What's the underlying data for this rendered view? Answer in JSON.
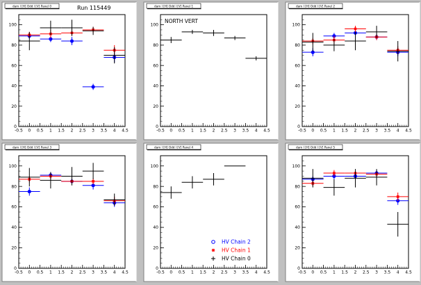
{
  "run_label": "Run 115449",
  "pad_titles": [
    "dam l [H] Odd l [V] Panel 0",
    "dam l [H] Odd l [V] Panel 1",
    "dam l [H] Odd l [V] Panel 2",
    "dam l [H] Odd l [V] Panel 3",
    "dam l [H] Odd l [V] Panel 4",
    "dam l [H] Odd l [V] Panel 5"
  ],
  "legend": {
    "entries": [
      {
        "label": "HV Chain 2",
        "color": "#0000ff",
        "marker": "open-circle"
      },
      {
        "label": "HV Chain 1",
        "color": "#ff0000",
        "marker": "star"
      },
      {
        "label": "HV Chain 0",
        "color": "#000000",
        "marker": "cross"
      }
    ]
  },
  "colors": {
    "chain2": "#0000ff",
    "chain1": "#ff0000",
    "chain0": "#000000",
    "pad_bg": "#ffffff",
    "canvas_bg": "#c0c0c0"
  },
  "chart_data": [
    {
      "type": "scatter",
      "title": "dam l [H] Odd l [V] Panel 0",
      "annotation": "Run 115449",
      "xlim": [
        -0.5,
        4.5
      ],
      "ylim": [
        0,
        110
      ],
      "x_ticks": [
        "-0.5",
        "0",
        "0.5",
        "1",
        "1.5",
        "2",
        "2.5",
        "3",
        "3.5",
        "4",
        "4.5"
      ],
      "y_ticks": [
        "0",
        "20",
        "40",
        "60",
        "80",
        "100"
      ],
      "series": [
        {
          "key": "chain2",
          "x": [
            0,
            1,
            2,
            3,
            4
          ],
          "y": [
            89,
            86,
            84,
            39,
            68
          ],
          "yerr": [
            3,
            3,
            4,
            3,
            5
          ]
        },
        {
          "key": "chain1",
          "x": [
            0,
            1,
            2,
            3,
            4
          ],
          "y": [
            90,
            91,
            92,
            95,
            75
          ],
          "yerr": [
            3,
            4,
            3,
            3,
            5
          ]
        },
        {
          "key": "chain0",
          "x": [
            0,
            1,
            2,
            3,
            4
          ],
          "y": [
            84,
            97,
            97,
            94,
            70
          ],
          "yerr": [
            9,
            7,
            8,
            4,
            8
          ]
        }
      ]
    },
    {
      "type": "scatter",
      "title": "dam l [H] Odd l [V] Panel 1",
      "annotation": "NORTH VERT",
      "xlim": [
        -0.5,
        4.5
      ],
      "ylim": [
        0,
        110
      ],
      "x_ticks": [
        "-0.5",
        "0",
        "0.5",
        "1",
        "1.5",
        "2",
        "2.5",
        "3",
        "3.5",
        "4",
        "4.5"
      ],
      "y_ticks": [
        "0",
        "20",
        "40",
        "60",
        "80",
        "100"
      ],
      "series": [
        {
          "key": "chain0",
          "x": [
            0,
            1,
            2,
            3,
            4
          ],
          "y": [
            85,
            93,
            92,
            87,
            67
          ],
          "yerr": [
            3,
            2,
            3,
            2,
            2
          ]
        }
      ]
    },
    {
      "type": "scatter",
      "title": "dam l [H] Odd l [V] Panel 2",
      "xlim": [
        -0.5,
        4.5
      ],
      "ylim": [
        0,
        110
      ],
      "x_ticks": [
        "-0.5",
        "0",
        "0.5",
        "1",
        "1.5",
        "2",
        "2.5",
        "3",
        "3.5",
        "4",
        "4.5"
      ],
      "y_ticks": [
        "0",
        "20",
        "40",
        "60",
        "80",
        "100"
      ],
      "series": [
        {
          "key": "chain2",
          "x": [
            0,
            1,
            2,
            3,
            4
          ],
          "y": [
            73,
            89,
            92,
            88,
            73
          ],
          "yerr": [
            4,
            3,
            3,
            3,
            4
          ]
        },
        {
          "key": "chain1",
          "x": [
            0,
            1,
            2,
            3,
            4
          ],
          "y": [
            84,
            85,
            96,
            88,
            75
          ],
          "yerr": [
            3,
            4,
            3,
            3,
            4
          ]
        },
        {
          "key": "chain0",
          "x": [
            0,
            1,
            2,
            3,
            4
          ],
          "y": [
            83,
            80,
            84,
            93,
            74
          ],
          "yerr": [
            9,
            6,
            9,
            6,
            10
          ]
        }
      ]
    },
    {
      "type": "scatter",
      "title": "dam l [H] Odd l [V] Panel 3",
      "xlim": [
        -0.5,
        4.5
      ],
      "ylim": [
        0,
        110
      ],
      "x_ticks": [
        "-0.5",
        "0",
        "0.5",
        "1",
        "1.5",
        "2",
        "2.5",
        "3",
        "3.5",
        "4",
        "4.5"
      ],
      "y_ticks": [
        "0",
        "20",
        "40",
        "60",
        "80",
        "100"
      ],
      "series": [
        {
          "key": "chain2",
          "x": [
            0,
            1,
            2,
            3,
            4
          ],
          "y": [
            75,
            91,
            85,
            81,
            64
          ],
          "yerr": [
            4,
            3,
            3,
            4,
            4
          ]
        },
        {
          "key": "chain1",
          "x": [
            0,
            1,
            2,
            3,
            4
          ],
          "y": [
            87,
            90,
            85,
            85,
            66
          ],
          "yerr": [
            3,
            3,
            3,
            3,
            4
          ]
        },
        {
          "key": "chain0",
          "x": [
            0,
            1,
            2,
            3,
            4
          ],
          "y": [
            89,
            86,
            90,
            95,
            67
          ],
          "yerr": [
            9,
            8,
            9,
            8,
            6
          ]
        }
      ]
    },
    {
      "type": "scatter",
      "title": "dam l [H] Odd l [V] Panel 4",
      "xlim": [
        -0.5,
        4.5
      ],
      "ylim": [
        0,
        110
      ],
      "x_ticks": [
        "-0.5",
        "0",
        "0.5",
        "1",
        "1.5",
        "2",
        "2.5",
        "3",
        "3.5",
        "4",
        "4.5"
      ],
      "y_ticks": [
        "0",
        "20",
        "40",
        "60",
        "80",
        "100"
      ],
      "series": [
        {
          "key": "chain0",
          "x": [
            0,
            1,
            2,
            3
          ],
          "y": [
            74,
            84,
            87,
            100
          ],
          "yerr": [
            6,
            6,
            6,
            0
          ]
        }
      ]
    },
    {
      "type": "scatter",
      "title": "dam l [H] Odd l [V] Panel 5",
      "xlim": [
        -0.5,
        4.5
      ],
      "ylim": [
        0,
        110
      ],
      "x_ticks": [
        "-0.5",
        "0",
        "0.5",
        "1",
        "1.5",
        "2",
        "2.5",
        "3",
        "3.5",
        "4",
        "4.5"
      ],
      "y_ticks": [
        "0",
        "20",
        "40",
        "60",
        "80",
        "100"
      ],
      "series": [
        {
          "key": "chain2",
          "x": [
            0,
            1,
            2,
            3,
            4
          ],
          "y": [
            87,
            90,
            90,
            93,
            66
          ],
          "yerr": [
            3,
            3,
            3,
            3,
            4
          ]
        },
        {
          "key": "chain1",
          "x": [
            0,
            1,
            2,
            3,
            4
          ],
          "y": [
            83,
            93,
            93,
            92,
            70
          ],
          "yerr": [
            3,
            3,
            3,
            3,
            4
          ]
        },
        {
          "key": "chain0",
          "x": [
            0,
            1,
            2,
            3,
            4
          ],
          "y": [
            88,
            79,
            88,
            89,
            43
          ],
          "yerr": [
            9,
            8,
            9,
            8,
            12
          ]
        }
      ]
    }
  ]
}
